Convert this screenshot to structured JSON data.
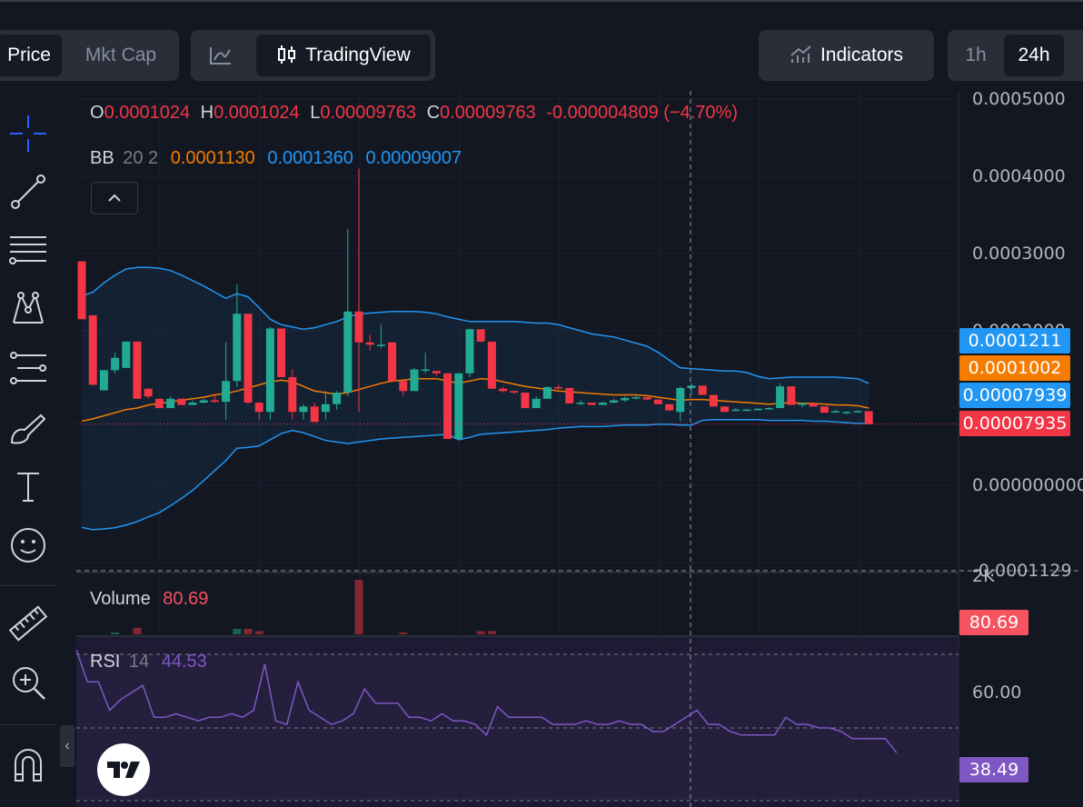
{
  "tabs": {
    "price": "Price",
    "mktcap": "Mkt Cap",
    "tradingview": "TradingView",
    "indicators": "Indicators",
    "tf_1h": "1h",
    "tf_24h": "24h"
  },
  "legend": {
    "o_label": "O",
    "o_value": "0.0001024",
    "h_label": "H",
    "h_value": "0.0001024",
    "l_label": "L",
    "l_value": "0.00009763",
    "c_label": "C",
    "c_value": "0.00009763",
    "change": "-0.000004809 (−4.70%)",
    "bb_label": "BB",
    "bb_params": "20 2",
    "bb_basis": "0.0001130",
    "bb_upper": "0.0001360",
    "bb_lower": "0.00009007",
    "volume_label": "Volume",
    "volume_value": "80.69",
    "rsi_label": "RSI",
    "rsi_param": "14",
    "rsi_value": "44.53"
  },
  "price_axis": {
    "ticks": [
      "0.0005000",
      "0.0004000",
      "0.0003000",
      "0.0002000",
      "0.000000000",
      "-0.0001129"
    ],
    "volume_tick": "2K",
    "rsi_tick": "60.00"
  },
  "price_tags": [
    {
      "value": "0.0001211",
      "color": "#2196f3"
    },
    {
      "value": "0.0001002",
      "color": "#f57c00"
    },
    {
      "value": "0.00007939",
      "color": "#2196f3"
    },
    {
      "value": "0.00007935",
      "color": "#f23645"
    }
  ],
  "volume_tag": "80.69",
  "rsi_tag": "38.49",
  "colors": {
    "up": "#22ab94",
    "down": "#f23645",
    "bb_band": "#2196f3",
    "bb_basis": "#f57c00",
    "rsi": "#7e57c2",
    "background": "#131722"
  },
  "icons": [
    "crosshair-icon",
    "trend-line-icon",
    "fib-icon",
    "pattern-icon",
    "forecast-icon",
    "brush-icon",
    "text-icon",
    "emoji-icon",
    "ruler-icon",
    "zoom-icon",
    "magnet-icon",
    "tv-logo-icon"
  ],
  "chart_data": {
    "type": "candlestick",
    "title": "",
    "ylim": [
      -0.0001129,
      0.0005
    ],
    "candles": [
      {
        "o": 0.00029,
        "h": 0.00029,
        "l": 0.000215,
        "c": 0.000215
      },
      {
        "o": 0.00022,
        "h": 0.00022,
        "l": 0.00013,
        "c": 0.00013
      },
      {
        "o": 0.000123,
        "h": 0.000149,
        "l": 0.000123,
        "c": 0.000149
      },
      {
        "o": 0.000149,
        "h": 0.000172,
        "l": 0.000145,
        "c": 0.000165
      },
      {
        "o": 0.000152,
        "h": 0.000186,
        "l": 0.000152,
        "c": 0.000186
      },
      {
        "o": 0.000186,
        "h": 0.000186,
        "l": 0.000112,
        "c": 0.000112
      },
      {
        "o": 0.000125,
        "h": 0.000125,
        "l": 0.000112,
        "c": 0.000115
      },
      {
        "o": 0.000112,
        "h": 0.000112,
        "l": 0.0001,
        "c": 0.0001
      },
      {
        "o": 0.0001,
        "h": 0.000115,
        "l": 0.0001,
        "c": 0.000112
      },
      {
        "o": 0.000112,
        "h": 0.000112,
        "l": 0.000104,
        "c": 0.000104
      },
      {
        "o": 0.000104,
        "h": 0.00011,
        "l": 0.000104,
        "c": 0.000107
      },
      {
        "o": 0.000107,
        "h": 0.000112,
        "l": 0.000106,
        "c": 0.00011
      },
      {
        "o": 0.00011,
        "h": 0.000116,
        "l": 0.000107,
        "c": 0.000108
      },
      {
        "o": 0.000108,
        "h": 0.000185,
        "l": 8.5e-05,
        "c": 0.000135
      },
      {
        "o": 0.000135,
        "h": 0.00026,
        "l": 0.000127,
        "c": 0.000222
      },
      {
        "o": 0.000222,
        "h": 0.000222,
        "l": 0.000105,
        "c": 0.000107
      },
      {
        "o": 0.000107,
        "h": 0.000107,
        "l": 8.5e-05,
        "c": 9.5e-05
      },
      {
        "o": 9.5e-05,
        "h": 0.000205,
        "l": 8.5e-05,
        "c": 0.000203
      },
      {
        "o": 0.000203,
        "h": 0.000203,
        "l": 0.00014,
        "c": 0.00014
      },
      {
        "o": 0.00014,
        "h": 0.00015,
        "l": 8.5e-05,
        "c": 9.5e-05
      },
      {
        "o": 9.5e-05,
        "h": 0.000105,
        "l": 8.5e-05,
        "c": 0.000102
      },
      {
        "o": 0.000102,
        "h": 0.000107,
        "l": 8.2e-05,
        "c": 8.2e-05
      },
      {
        "o": 9.5e-05,
        "h": 0.000122,
        "l": 8.5e-05,
        "c": 0.000105
      },
      {
        "o": 0.000105,
        "h": 0.000122,
        "l": 9.8e-05,
        "c": 0.00012
      },
      {
        "o": 0.00012,
        "h": 0.000332,
        "l": 0.000115,
        "c": 0.000225
      },
      {
        "o": 0.000225,
        "h": 0.00041,
        "l": 9.5e-05,
        "c": 0.000185
      },
      {
        "o": 0.000185,
        "h": 0.000195,
        "l": 0.000175,
        "c": 0.000182
      },
      {
        "o": 0.000182,
        "h": 0.000208,
        "l": 0.000178,
        "c": 0.000182
      },
      {
        "o": 0.000185,
        "h": 0.000185,
        "l": 0.000135,
        "c": 0.000135
      },
      {
        "o": 0.000135,
        "h": 0.000135,
        "l": 0.000115,
        "c": 0.000122
      },
      {
        "o": 0.000122,
        "h": 0.000152,
        "l": 0.000122,
        "c": 0.00015
      },
      {
        "o": 0.00015,
        "h": 0.000172,
        "l": 0.000145,
        "c": 0.00015
      },
      {
        "o": 0.000148,
        "h": 0.000148,
        "l": 0.000142,
        "c": 0.000145
      },
      {
        "o": 0.000145,
        "h": 0.000145,
        "l": 6e-05,
        "c": 6e-05
      },
      {
        "o": 6e-05,
        "h": 0.000145,
        "l": 6e-05,
        "c": 0.000145
      },
      {
        "o": 0.000145,
        "h": 0.000203,
        "l": 0.00014,
        "c": 0.000202
      },
      {
        "o": 0.000202,
        "h": 0.000202,
        "l": 0.000185,
        "c": 0.000186
      },
      {
        "o": 0.000186,
        "h": 0.000186,
        "l": 0.000125,
        "c": 0.000125
      },
      {
        "o": 0.000125,
        "h": 0.000128,
        "l": 0.00012,
        "c": 0.000122
      },
      {
        "o": 0.000122,
        "h": 0.000122,
        "l": 0.000118,
        "c": 0.00012
      },
      {
        "o": 0.00012,
        "h": 0.00012,
        "l": 0.0001,
        "c": 0.0001
      },
      {
        "o": 0.0001,
        "h": 0.000115,
        "l": 0.0001,
        "c": 0.000112
      },
      {
        "o": 0.000112,
        "h": 0.000128,
        "l": 0.000112,
        "c": 0.000127
      },
      {
        "o": 0.000127,
        "h": 0.00013,
        "l": 0.000124,
        "c": 0.000126
      },
      {
        "o": 0.000126,
        "h": 0.000126,
        "l": 0.000106,
        "c": 0.000106
      },
      {
        "o": 0.000106,
        "h": 0.00011,
        "l": 0.000104,
        "c": 0.000107
      },
      {
        "o": 0.000107,
        "h": 0.000107,
        "l": 0.000104,
        "c": 0.000104
      },
      {
        "o": 0.000104,
        "h": 0.000108,
        "l": 0.000104,
        "c": 0.000107
      },
      {
        "o": 0.000107,
        "h": 0.000112,
        "l": 0.000106,
        "c": 0.00011
      },
      {
        "o": 0.00011,
        "h": 0.000115,
        "l": 0.000108,
        "c": 0.000113
      },
      {
        "o": 0.000113,
        "h": 0.000117,
        "l": 0.000111,
        "c": 0.000114
      },
      {
        "o": 0.000114,
        "h": 0.000114,
        "l": 0.00011,
        "c": 0.000111
      },
      {
        "o": 0.000111,
        "h": 0.000111,
        "l": 0.000105,
        "c": 0.000105
      },
      {
        "o": 0.000105,
        "h": 0.000105,
        "l": 9.7e-05,
        "c": 9.7e-05
      },
      {
        "o": 9.5e-05,
        "h": 0.000128,
        "l": 8.3e-05,
        "c": 0.000126
      },
      {
        "o": 0.000126,
        "h": 0.000132,
        "l": 0.000118,
        "c": 0.000129
      },
      {
        "o": 0.000129,
        "h": 0.000129,
        "l": 0.000117,
        "c": 0.000117
      },
      {
        "o": 0.000117,
        "h": 0.000117,
        "l": 0.000102,
        "c": 0.000102
      },
      {
        "o": 0.000102,
        "h": 0.000102,
        "l": 9.5e-05,
        "c": 9.5e-05
      },
      {
        "o": 9.7e-05,
        "h": 0.0001,
        "l": 9.6e-05,
        "c": 9.8e-05
      },
      {
        "o": 9.8e-05,
        "h": 9.9e-05,
        "l": 9.7e-05,
        "c": 9.8e-05
      },
      {
        "o": 9.8e-05,
        "h": 0.0001,
        "l": 9.7e-05,
        "c": 9.9e-05
      },
      {
        "o": 9.9e-05,
        "h": 0.000101,
        "l": 9.8e-05,
        "c": 0.0001
      },
      {
        "o": 0.0001,
        "h": 0.000132,
        "l": 0.0001,
        "c": 0.000128
      },
      {
        "o": 0.000128,
        "h": 0.000128,
        "l": 0.000104,
        "c": 0.000104
      },
      {
        "o": 0.000104,
        "h": 0.000107,
        "l": 0.000101,
        "c": 0.000106
      },
      {
        "o": 0.000106,
        "h": 0.000106,
        "l": 0.000102,
        "c": 0.000102
      },
      {
        "o": 0.000102,
        "h": 0.000102,
        "l": 9.4e-05,
        "c": 9.4e-05
      },
      {
        "o": 9.6e-05,
        "h": 9.8e-05,
        "l": 9.4e-05,
        "c": 9.6e-05
      },
      {
        "o": 9.4e-05,
        "h": 9.6e-05,
        "l": 9.2e-05,
        "c": 9.5e-05
      },
      {
        "o": 9.5e-05,
        "h": 9.7e-05,
        "l": 9.4e-05,
        "c": 9.6e-05
      },
      {
        "o": 9.6e-05,
        "h": 9.6e-05,
        "l": 7.9e-05,
        "c": 7.9e-05
      }
    ],
    "bb_upper": [
      0.000245,
      0.00025,
      0.000262,
      0.000272,
      0.00028,
      0.000282,
      0.000282,
      0.000281,
      0.000278,
      0.000272,
      0.000265,
      0.000258,
      0.00025,
      0.000242,
      0.000248,
      0.000244,
      0.00023,
      0.000215,
      0.000208,
      0.000205,
      0.000202,
      0.000204,
      0.000208,
      0.000212,
      0.000218,
      0.000222,
      0.000223,
      0.000224,
      0.000225,
      0.000225,
      0.000225,
      0.000224,
      0.000222,
      0.000218,
      0.000215,
      0.000212,
      0.000212,
      0.000212,
      0.000212,
      0.000212,
      0.000211,
      0.00021,
      0.00021,
      0.000208,
      0.000204,
      0.0002,
      0.000196,
      0.000194,
      0.000192,
      0.000188,
      0.000184,
      0.00018,
      0.000172,
      0.000162,
      0.000152,
      0.000151,
      0.00015,
      0.000149,
      0.000148,
      0.000148,
      0.000146,
      0.000141,
      0.000138,
      0.000139,
      0.00014,
      0.00014,
      0.00014,
      0.00014,
      0.00014,
      0.000139,
      0.000138,
      0.000132
    ],
    "bb_basis": [
      8.3e-05,
      8.6e-05,
      9e-05,
      9.4e-05,
      9.8e-05,
      0.0001,
      0.000104,
      0.000106,
      0.000108,
      0.00011,
      0.000112,
      0.000114,
      0.000117,
      0.000119,
      0.000122,
      0.000126,
      0.00013,
      0.000134,
      0.000136,
      0.000134,
      0.000128,
      0.000122,
      0.00012,
      0.000118,
      0.00012,
      0.000124,
      0.000128,
      0.000132,
      0.000135,
      0.000136,
      0.000138,
      0.000138,
      0.000138,
      0.000135,
      0.000132,
      0.000135,
      0.000138,
      0.000137,
      0.000134,
      0.000131,
      0.000128,
      0.000126,
      0.000124,
      0.000122,
      0.000121,
      0.00012,
      0.000119,
      0.000118,
      0.000117,
      0.000117,
      0.000117,
      0.000116,
      0.000114,
      0.000112,
      0.00011,
      0.000111,
      0.000111,
      0.00011,
      0.000109,
      0.000108,
      0.000107,
      0.000106,
      0.000105,
      0.000106,
      0.000107,
      0.000106,
      0.000106,
      0.000105,
      0.000104,
      0.000104,
      0.000103,
      0.0001
    ],
    "bb_lower": [
      -5.45e-05,
      -5.75e-05,
      -5.65e-05,
      -5.5e-05,
      -5.15e-05,
      -4.7e-05,
      -4.1e-05,
      -3.55e-05,
      -2.65e-05,
      -1.7e-05,
      -6.5e-06,
      6e-06,
      1.9e-05,
      3.2e-05,
      4.8e-05,
      4.9e-05,
      5.1e-05,
      5.9e-05,
      6.7e-05,
      7.1e-05,
      6.8e-05,
      6.3e-05,
      5.8e-05,
      5.6e-05,
      5.4e-05,
      5.6e-05,
      5.8e-05,
      6e-05,
      6.1e-05,
      6.2e-05,
      6.3e-05,
      6.4e-05,
      6.5e-05,
      6.6e-05,
      5.9e-05,
      6.2e-05,
      6.6e-05,
      6.7e-05,
      6.8e-05,
      6.9e-05,
      7e-05,
      7.1e-05,
      7.2e-05,
      7.4e-05,
      7.5e-05,
      7.6e-05,
      7.6e-05,
      7.6e-05,
      7.7e-05,
      7.8e-05,
      7.8e-05,
      7.8e-05,
      7.9e-05,
      7.9e-05,
      7.8e-05,
      7.8e-05,
      8.4e-05,
      8.5e-05,
      8.5e-05,
      8.5e-05,
      8.5e-05,
      8.5e-05,
      8.4e-05,
      8.4e-05,
      8.4e-05,
      8.4e-05,
      8.3e-05,
      8.3e-05,
      8.2e-05,
      8.1e-05,
      8e-05,
      8e-05
    ],
    "volume": [
      0,
      0,
      0,
      0.03,
      0,
      0.12,
      0,
      0,
      0,
      0,
      0,
      0,
      0,
      0,
      0.1,
      0.1,
      0.06,
      0,
      0,
      0,
      0,
      0,
      0,
      0,
      0,
      1,
      0,
      0,
      0,
      0.03,
      0,
      0,
      0,
      0,
      0,
      0,
      0.06,
      0.06,
      0,
      0,
      0,
      0,
      0,
      0,
      0,
      0,
      0,
      0,
      0,
      0,
      0,
      0,
      0,
      0,
      0,
      0,
      0,
      0,
      0,
      0,
      0,
      0,
      0,
      0,
      0,
      0,
      0,
      0,
      0,
      0,
      0,
      0
    ],
    "rsi": [
      72,
      63,
      63,
      55,
      58,
      60,
      62,
      53,
      53,
      54,
      53,
      52,
      53,
      53,
      54,
      53,
      55,
      68,
      52,
      51,
      63,
      55,
      53,
      51,
      52,
      54,
      61,
      57,
      57,
      57,
      53,
      53,
      52,
      54,
      52,
      52,
      51,
      48,
      56,
      53,
      53,
      53,
      53,
      51,
      51,
      51,
      52,
      51,
      51,
      52,
      51,
      51,
      49,
      49,
      51,
      53,
      55,
      51,
      51,
      49,
      48,
      48,
      48,
      48,
      53,
      51,
      51,
      50,
      50,
      49,
      47,
      47,
      47,
      47,
      43
    ]
  }
}
